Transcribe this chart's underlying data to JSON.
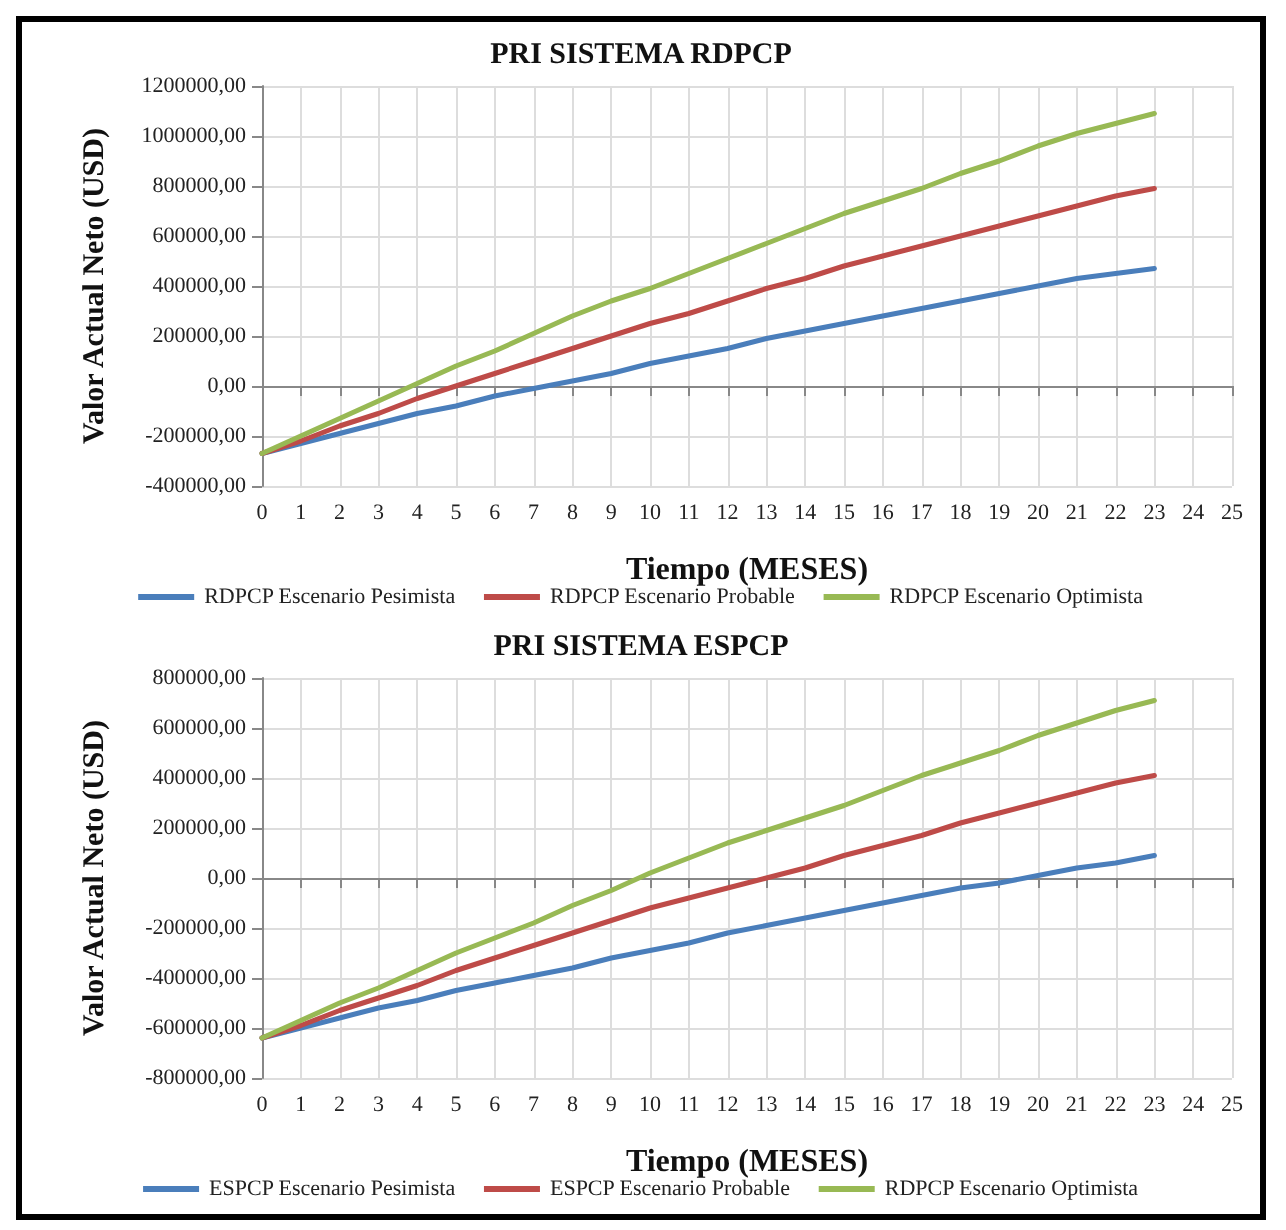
{
  "chart_data": [
    {
      "type": "line",
      "title": "PRI SISTEMA RDPCP",
      "xlabel": "Tiempo (MESES)",
      "ylabel": "Valor Actual Neto (USD)",
      "x": [
        0,
        1,
        2,
        3,
        4,
        5,
        6,
        7,
        8,
        9,
        10,
        11,
        12,
        13,
        14,
        15,
        16,
        17,
        18,
        19,
        20,
        21,
        22,
        23
      ],
      "xlim": [
        0,
        25
      ],
      "xticks": [
        0,
        1,
        2,
        3,
        4,
        5,
        6,
        7,
        8,
        9,
        10,
        11,
        12,
        13,
        14,
        15,
        16,
        17,
        18,
        19,
        20,
        21,
        22,
        23,
        24,
        25
      ],
      "ylim": [
        -400000,
        1200000
      ],
      "yticks": [
        {
          "value": -400000,
          "label": "-400000,00"
        },
        {
          "value": -200000,
          "label": "-200000,00"
        },
        {
          "value": 0,
          "label": "0,00"
        },
        {
          "value": 200000,
          "label": "200000,00"
        },
        {
          "value": 400000,
          "label": "400000,00"
        },
        {
          "value": 600000,
          "label": "600000,00"
        },
        {
          "value": 800000,
          "label": "800000,00"
        },
        {
          "value": 1000000,
          "label": "1000000,00"
        },
        {
          "value": 1200000,
          "label": "1200000,00"
        }
      ],
      "grid": true,
      "legend": "bottom",
      "marker": "none",
      "line_style": "solid",
      "series": [
        {
          "name": "RDPCP Escenario Pesimista",
          "color": "#4a7ebb",
          "values": [
            -270000,
            -230000,
            -190000,
            -150000,
            -110000,
            -80000,
            -40000,
            -10000,
            20000,
            50000,
            90000,
            120000,
            150000,
            190000,
            220000,
            250000,
            280000,
            310000,
            340000,
            370000,
            400000,
            430000,
            450000,
            470000
          ]
        },
        {
          "name": "RDPCP Escenario Probable",
          "color": "#be4b48",
          "values": [
            -270000,
            -220000,
            -160000,
            -110000,
            -50000,
            0,
            50000,
            100000,
            150000,
            200000,
            250000,
            290000,
            340000,
            390000,
            430000,
            480000,
            520000,
            560000,
            600000,
            640000,
            680000,
            720000,
            760000,
            790000
          ]
        },
        {
          "name": "RDPCP Escenario Optimista",
          "color": "#98b954",
          "values": [
            -270000,
            -200000,
            -130000,
            -60000,
            10000,
            80000,
            140000,
            210000,
            280000,
            340000,
            390000,
            450000,
            510000,
            570000,
            630000,
            690000,
            740000,
            790000,
            850000,
            900000,
            960000,
            1010000,
            1050000,
            1090000
          ]
        }
      ]
    },
    {
      "type": "line",
      "title": "PRI SISTEMA ESPCP",
      "xlabel": "Tiempo (MESES)",
      "ylabel": "Valor Actual Neto (USD)",
      "x": [
        0,
        1,
        2,
        3,
        4,
        5,
        6,
        7,
        8,
        9,
        10,
        11,
        12,
        13,
        14,
        15,
        16,
        17,
        18,
        19,
        20,
        21,
        22,
        23
      ],
      "xlim": [
        0,
        25
      ],
      "xticks": [
        0,
        1,
        2,
        3,
        4,
        5,
        6,
        7,
        8,
        9,
        10,
        11,
        12,
        13,
        14,
        15,
        16,
        17,
        18,
        19,
        20,
        21,
        22,
        23,
        24,
        25
      ],
      "ylim": [
        -800000,
        800000
      ],
      "yticks": [
        {
          "value": -800000,
          "label": "-800000,00"
        },
        {
          "value": -600000,
          "label": "-600000,00"
        },
        {
          "value": -400000,
          "label": "-400000,00"
        },
        {
          "value": -200000,
          "label": "-200000,00"
        },
        {
          "value": 0,
          "label": "0,00"
        },
        {
          "value": 200000,
          "label": "200000,00"
        },
        {
          "value": 400000,
          "label": "400000,00"
        },
        {
          "value": 600000,
          "label": "600000,00"
        },
        {
          "value": 800000,
          "label": "800000,00"
        }
      ],
      "grid": true,
      "legend": "bottom",
      "marker": "none",
      "line_style": "solid",
      "series": [
        {
          "name": "ESPCP Escenario Pesimista",
          "color": "#4a7ebb",
          "values": [
            -640000,
            -600000,
            -560000,
            -520000,
            -490000,
            -450000,
            -420000,
            -390000,
            -360000,
            -320000,
            -290000,
            -260000,
            -220000,
            -190000,
            -160000,
            -130000,
            -100000,
            -70000,
            -40000,
            -20000,
            10000,
            40000,
            60000,
            90000
          ]
        },
        {
          "name": "ESPCP Escenario Probable",
          "color": "#be4b48",
          "values": [
            -640000,
            -590000,
            -530000,
            -480000,
            -430000,
            -370000,
            -320000,
            -270000,
            -220000,
            -170000,
            -120000,
            -80000,
            -40000,
            0,
            40000,
            90000,
            130000,
            170000,
            220000,
            260000,
            300000,
            340000,
            380000,
            410000
          ]
        },
        {
          "name": "RDPCP Escenario Optimista",
          "color": "#98b954",
          "values": [
            -640000,
            -570000,
            -500000,
            -440000,
            -370000,
            -300000,
            -240000,
            -180000,
            -110000,
            -50000,
            20000,
            80000,
            140000,
            190000,
            240000,
            290000,
            350000,
            410000,
            460000,
            510000,
            570000,
            620000,
            670000,
            710000
          ]
        }
      ]
    }
  ]
}
